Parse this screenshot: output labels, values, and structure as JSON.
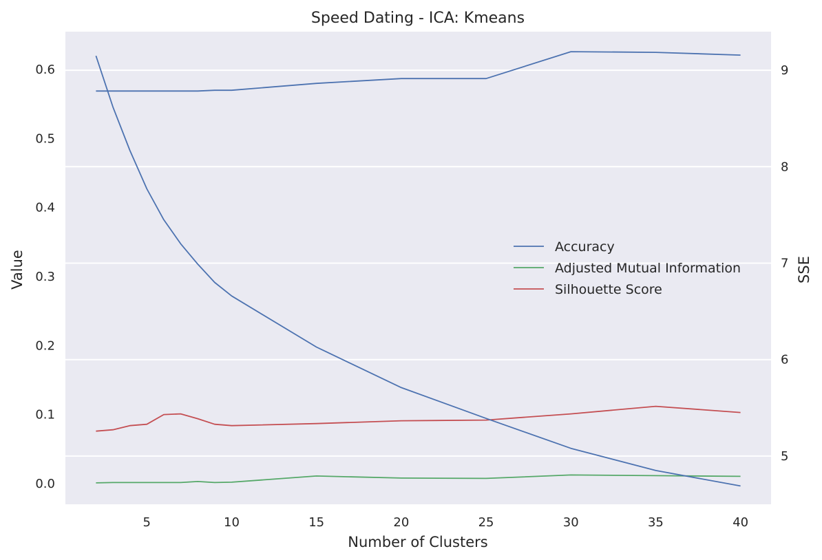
{
  "chart_data": {
    "type": "line",
    "title": "Speed Dating - ICA: Kmeans",
    "xlabel": "Number of Clusters",
    "ylabel": "Value",
    "y2label": "SSE",
    "xlim": [
      0.2,
      41.8
    ],
    "ylim": [
      -0.03,
      0.655
    ],
    "y2lim": [
      4.5,
      9.4
    ],
    "xticks": [
      5,
      10,
      15,
      20,
      25,
      30,
      35,
      40
    ],
    "yticks": [
      0.0,
      0.1,
      0.2,
      0.3,
      0.4,
      0.5,
      0.6
    ],
    "ytick_labels": [
      "0.0",
      "0.1",
      "0.2",
      "0.3",
      "0.4",
      "0.5",
      "0.6"
    ],
    "y2ticks": [
      5,
      6,
      7,
      8,
      9
    ],
    "grid": "horizontal, right axis",
    "legend_position": "center-right",
    "series": [
      {
        "name": "Accuracy",
        "axis": "left",
        "color": "#4c72b0",
        "x": [
          2,
          3,
          4,
          5,
          6,
          7,
          8,
          9,
          10,
          15,
          20,
          25,
          30,
          35,
          40
        ],
        "values": [
          0.569,
          0.569,
          0.569,
          0.569,
          0.569,
          0.569,
          0.569,
          0.57,
          0.57,
          0.58,
          0.587,
          0.587,
          0.626,
          0.625,
          0.621
        ]
      },
      {
        "name": "Adjusted Mutual Information",
        "axis": "left",
        "color": "#55a868",
        "x": [
          2,
          3,
          4,
          5,
          6,
          7,
          8,
          9,
          10,
          15,
          20,
          25,
          30,
          35,
          40
        ],
        "values": [
          0.001,
          0.0015,
          0.0015,
          0.0015,
          0.0015,
          0.0015,
          0.003,
          0.0015,
          0.002,
          0.011,
          0.008,
          0.0075,
          0.0125,
          0.0115,
          0.0105
        ]
      },
      {
        "name": "Silhouette Score",
        "axis": "left",
        "color": "#c44e52",
        "x": [
          2,
          3,
          4,
          5,
          6,
          7,
          8,
          9,
          10,
          15,
          20,
          25,
          30,
          35,
          40
        ],
        "values": [
          0.076,
          0.078,
          0.084,
          0.086,
          0.1,
          0.101,
          0.094,
          0.086,
          0.084,
          0.087,
          0.091,
          0.092,
          0.101,
          0.112,
          0.103
        ]
      },
      {
        "axis": "right",
        "color": "#4c72b0",
        "x": [
          2,
          3,
          4,
          5,
          6,
          7,
          8,
          9,
          10,
          15,
          20,
          25,
          30,
          35,
          40
        ],
        "values": [
          9.15,
          8.62,
          8.17,
          7.77,
          7.45,
          7.2,
          6.99,
          6.8,
          6.66,
          6.13,
          5.71,
          5.39,
          5.08,
          4.85,
          4.69
        ]
      }
    ]
  }
}
